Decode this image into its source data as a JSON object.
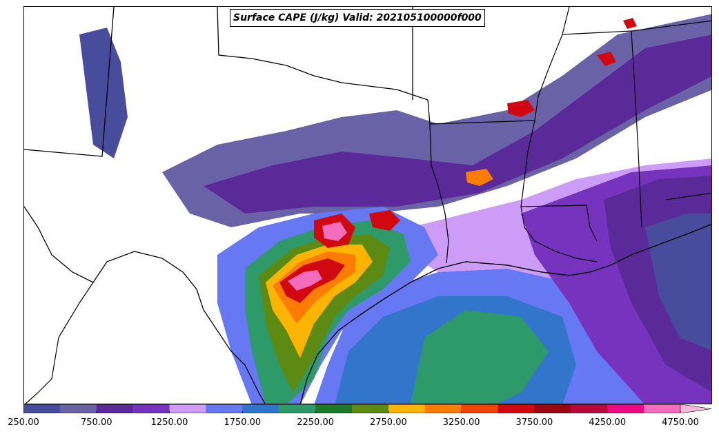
{
  "title": "Surface CAPE (J/kg) Valid: 202105100000f000",
  "colorbar": {
    "levels": [
      250,
      500,
      750,
      1000,
      1250,
      1500,
      1750,
      2000,
      2250,
      2500,
      2750,
      3000,
      3250,
      3500,
      3750,
      4000,
      4250,
      4500,
      4750
    ],
    "colors": [
      "#484c9c",
      "#6a62a6",
      "#5a2a98",
      "#7634be",
      "#cc9cf6",
      "#6678f2",
      "#3276cc",
      "#2e9a6a",
      "#1e7a2a",
      "#5c8a12",
      "#fbb402",
      "#fc7c04",
      "#ee4604",
      "#d00810",
      "#9a0612",
      "#b40a3c",
      "#ec0a86",
      "#f46cbc"
    ],
    "extend_color": "#f9b6dc",
    "tick_labels": [
      "250.00",
      "750.00",
      "1250.00",
      "1750.00",
      "2250.00",
      "2750.00",
      "3250.00",
      "3750.00",
      "4250.00",
      "4750.00"
    ]
  }
}
